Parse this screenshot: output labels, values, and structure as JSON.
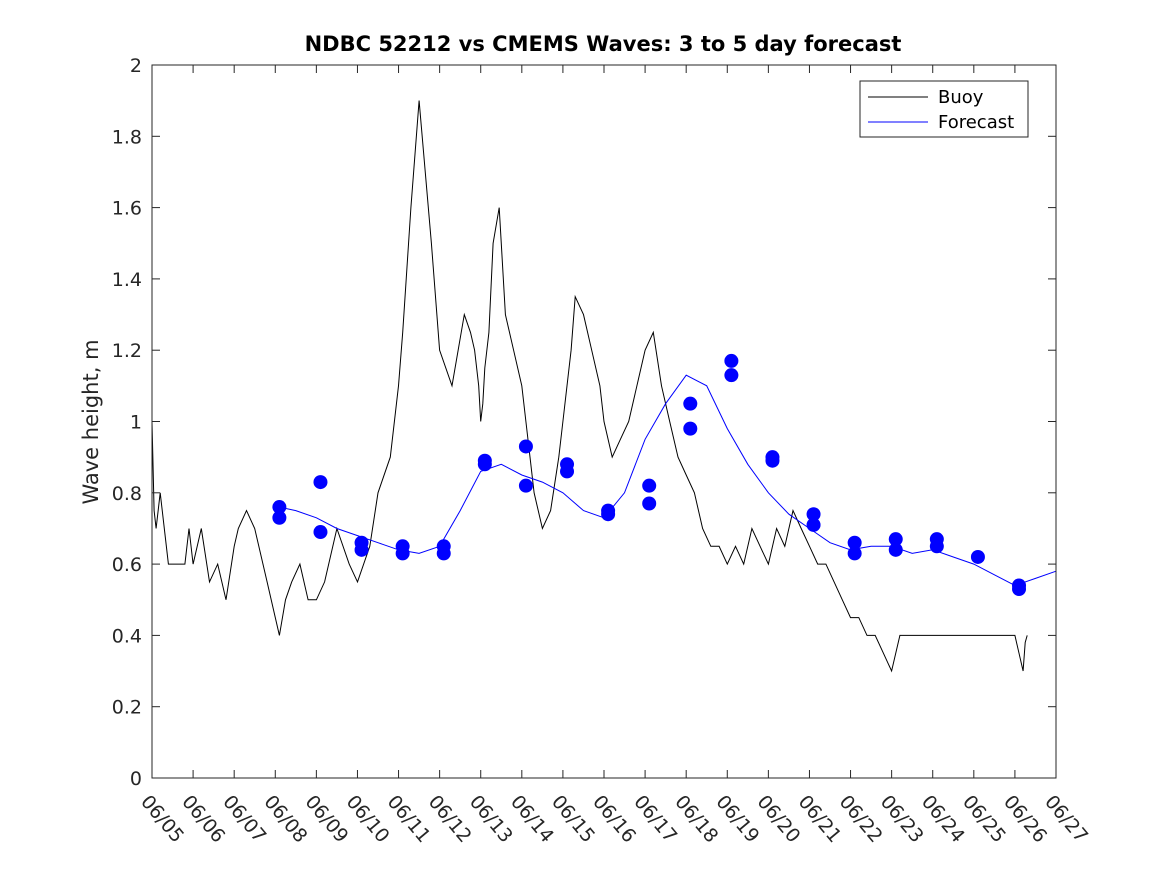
{
  "colors": {
    "buoy": "#000000",
    "forecast": "#0000ff"
  },
  "chart_data": {
    "type": "line",
    "title": "NDBC 52212 vs CMEMS Waves: 3 to 5 day forecast",
    "xlabel": "",
    "ylabel": "Wave height, m",
    "ylim": [
      0,
      2
    ],
    "yticks": [
      "0",
      "0.2",
      "0.4",
      "0.6",
      "0.8",
      "1",
      "1.2",
      "1.4",
      "1.6",
      "1.8",
      "2"
    ],
    "xlim": [
      "06/05",
      "06/27"
    ],
    "xticks": [
      "06/05",
      "06/06",
      "06/07",
      "06/08",
      "06/09",
      "06/10",
      "06/11",
      "06/12",
      "06/13",
      "06/14",
      "06/15",
      "06/16",
      "06/17",
      "06/18",
      "06/19",
      "06/20",
      "06/21",
      "06/22",
      "06/23",
      "06/24",
      "06/25",
      "06/26",
      "06/27"
    ],
    "grid": false,
    "legend": {
      "placement": "top-right",
      "entries": [
        "Buoy",
        "Forecast"
      ]
    },
    "series": [
      {
        "name": "Buoy",
        "x_days_after_0605": [
          0,
          0.05,
          0.1,
          0.2,
          0.4,
          0.8,
          0.9,
          1.0,
          1.2,
          1.4,
          1.6,
          1.8,
          2.0,
          2.1,
          2.3,
          2.5,
          2.8,
          3.0,
          3.1,
          3.25,
          3.4,
          3.6,
          3.8,
          4.0,
          4.2,
          4.5,
          4.8,
          5.0,
          5.3,
          5.5,
          5.8,
          6.0,
          6.1,
          6.3,
          6.5,
          6.8,
          7.0,
          7.3,
          7.6,
          7.75,
          7.85,
          7.95,
          8.0,
          8.05,
          8.1,
          8.2,
          8.3,
          8.45,
          8.6,
          8.8,
          9.0,
          9.1,
          9.2,
          9.3,
          9.5,
          9.7,
          9.9,
          10.0,
          10.1,
          10.2,
          10.3,
          10.5,
          10.7,
          10.9,
          11.0,
          11.2,
          11.4,
          11.6,
          11.8,
          12.0,
          12.2,
          12.4,
          12.6,
          12.8,
          13.0,
          13.2,
          13.4,
          13.6,
          13.8,
          14.0,
          14.2,
          14.4,
          14.6,
          14.8,
          15.0,
          15.2,
          15.4,
          15.6,
          15.8,
          16.0,
          16.2,
          16.4,
          16.6,
          16.8,
          17.0,
          17.2,
          17.4,
          17.6,
          17.8,
          18.0,
          18.2,
          18.4,
          18.6,
          18.8,
          19.0,
          19.2,
          19.4,
          19.6,
          19.8,
          20.0,
          20.2,
          20.4,
          20.6,
          20.8,
          21.0,
          21.1,
          21.2,
          21.25,
          21.3
        ],
        "values": [
          1.0,
          0.75,
          0.7,
          0.8,
          0.6,
          0.6,
          0.7,
          0.6,
          0.7,
          0.55,
          0.6,
          0.5,
          0.65,
          0.7,
          0.75,
          0.7,
          0.55,
          0.45,
          0.4,
          0.5,
          0.55,
          0.6,
          0.5,
          0.5,
          0.55,
          0.7,
          0.6,
          0.55,
          0.65,
          0.8,
          0.9,
          1.1,
          1.25,
          1.6,
          1.9,
          1.5,
          1.2,
          1.1,
          1.3,
          1.25,
          1.2,
          1.1,
          1.0,
          1.05,
          1.15,
          1.25,
          1.5,
          1.6,
          1.3,
          1.2,
          1.1,
          1.0,
          0.9,
          0.8,
          0.7,
          0.75,
          0.9,
          1.0,
          1.1,
          1.2,
          1.35,
          1.3,
          1.2,
          1.1,
          1.0,
          0.9,
          0.95,
          1.0,
          1.1,
          1.2,
          1.25,
          1.1,
          1.0,
          0.9,
          0.85,
          0.8,
          0.7,
          0.65,
          0.65,
          0.6,
          0.65,
          0.6,
          0.7,
          0.65,
          0.6,
          0.7,
          0.65,
          0.75,
          0.7,
          0.65,
          0.6,
          0.6,
          0.55,
          0.5,
          0.45,
          0.45,
          0.4,
          0.4,
          0.35,
          0.3,
          0.4,
          0.4,
          0.4,
          0.4,
          0.4,
          0.4,
          0.4,
          0.4,
          0.4,
          0.4,
          0.4,
          0.4,
          0.4,
          0.4,
          0.4,
          0.35,
          0.3,
          0.38,
          0.4
        ]
      },
      {
        "name": "Forecast",
        "x_days_after_0605": [
          3.1,
          3.5,
          4.0,
          4.5,
          5.0,
          5.5,
          6.0,
          6.5,
          7.0,
          7.5,
          8.0,
          8.5,
          9.0,
          9.5,
          10.0,
          10.5,
          11.0,
          11.5,
          12.0,
          12.5,
          13.0,
          13.5,
          14.0,
          14.5,
          15.0,
          15.5,
          16.0,
          16.5,
          17.0,
          17.5,
          18.0,
          18.5,
          19.0,
          19.5,
          20.0,
          20.5,
          21.0,
          21.5,
          22.0
        ],
        "values": [
          0.76,
          0.75,
          0.73,
          0.7,
          0.68,
          0.66,
          0.64,
          0.63,
          0.65,
          0.75,
          0.86,
          0.88,
          0.85,
          0.83,
          0.8,
          0.75,
          0.73,
          0.8,
          0.95,
          1.05,
          1.13,
          1.1,
          0.98,
          0.88,
          0.8,
          0.74,
          0.7,
          0.66,
          0.64,
          0.65,
          0.65,
          0.63,
          0.64,
          0.62,
          0.6,
          0.57,
          0.54,
          0.56,
          0.58
        ]
      }
    ],
    "markers": [
      {
        "x_days_after_0605": 3.1,
        "y": 0.76
      },
      {
        "x_days_after_0605": 3.1,
        "y": 0.73
      },
      {
        "x_days_after_0605": 4.1,
        "y": 0.83
      },
      {
        "x_days_after_0605": 4.1,
        "y": 0.69
      },
      {
        "x_days_after_0605": 5.1,
        "y": 0.66
      },
      {
        "x_days_after_0605": 5.1,
        "y": 0.64
      },
      {
        "x_days_after_0605": 6.1,
        "y": 0.65
      },
      {
        "x_days_after_0605": 6.1,
        "y": 0.63
      },
      {
        "x_days_after_0605": 7.1,
        "y": 0.65
      },
      {
        "x_days_after_0605": 7.1,
        "y": 0.63
      },
      {
        "x_days_after_0605": 8.1,
        "y": 0.89
      },
      {
        "x_days_after_0605": 8.1,
        "y": 0.88
      },
      {
        "x_days_after_0605": 9.1,
        "y": 0.93
      },
      {
        "x_days_after_0605": 9.1,
        "y": 0.82
      },
      {
        "x_days_after_0605": 10.1,
        "y": 0.88
      },
      {
        "x_days_after_0605": 10.1,
        "y": 0.86
      },
      {
        "x_days_after_0605": 11.1,
        "y": 0.75
      },
      {
        "x_days_after_0605": 11.1,
        "y": 0.74
      },
      {
        "x_days_after_0605": 12.1,
        "y": 0.82
      },
      {
        "x_days_after_0605": 12.1,
        "y": 0.77
      },
      {
        "x_days_after_0605": 13.1,
        "y": 1.05
      },
      {
        "x_days_after_0605": 13.1,
        "y": 0.98
      },
      {
        "x_days_after_0605": 14.1,
        "y": 1.17
      },
      {
        "x_days_after_0605": 14.1,
        "y": 1.13
      },
      {
        "x_days_after_0605": 15.1,
        "y": 0.9
      },
      {
        "x_days_after_0605": 15.1,
        "y": 0.89
      },
      {
        "x_days_after_0605": 16.1,
        "y": 0.74
      },
      {
        "x_days_after_0605": 16.1,
        "y": 0.71
      },
      {
        "x_days_after_0605": 17.1,
        "y": 0.66
      },
      {
        "x_days_after_0605": 17.1,
        "y": 0.63
      },
      {
        "x_days_after_0605": 18.1,
        "y": 0.67
      },
      {
        "x_days_after_0605": 18.1,
        "y": 0.64
      },
      {
        "x_days_after_0605": 19.1,
        "y": 0.67
      },
      {
        "x_days_after_0605": 19.1,
        "y": 0.65
      },
      {
        "x_days_after_0605": 20.1,
        "y": 0.62
      },
      {
        "x_days_after_0605": 21.1,
        "y": 0.54
      },
      {
        "x_days_after_0605": 21.1,
        "y": 0.53
      }
    ]
  }
}
